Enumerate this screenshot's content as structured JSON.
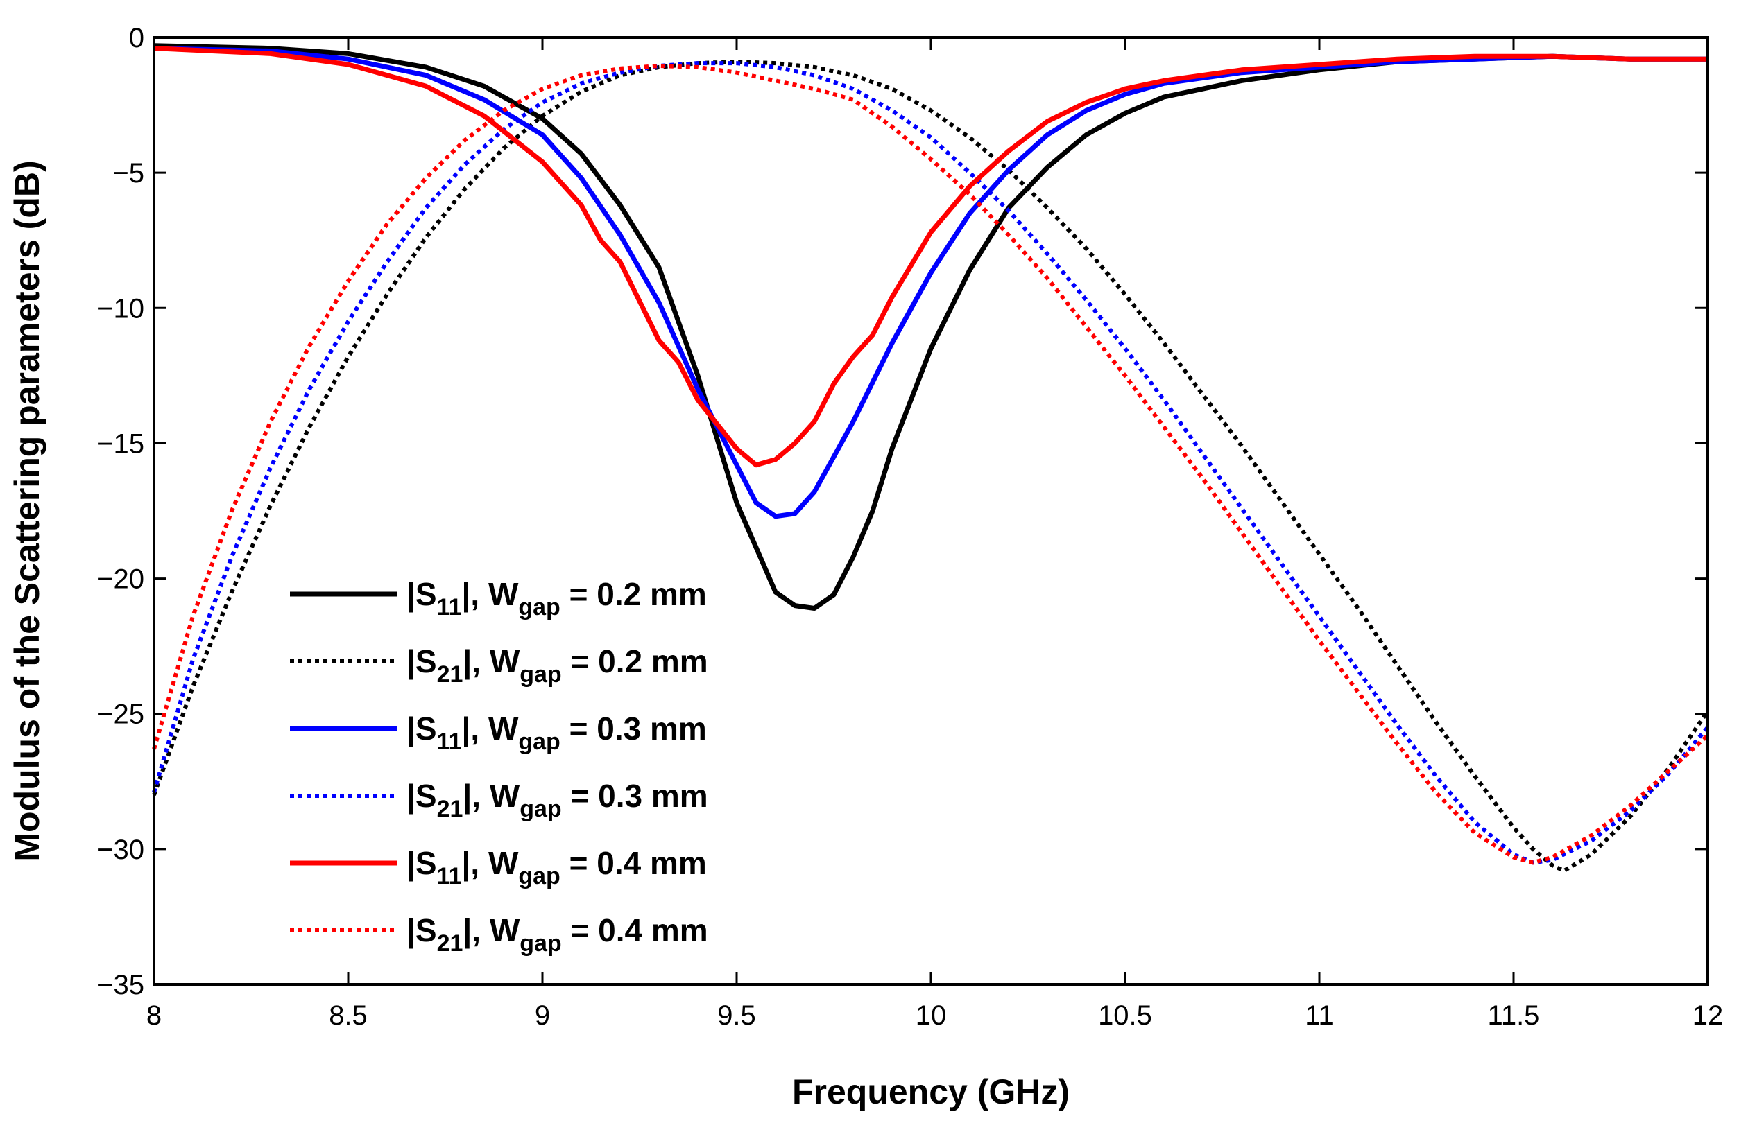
{
  "chart_data": {
    "type": "line",
    "title": "",
    "xlabel": "Frequency (GHz)",
    "ylabel": "Modulus of the Scattering parameters (dB)",
    "xlim": [
      8,
      12
    ],
    "ylim": [
      -35,
      0
    ],
    "xticks": [
      8,
      8.5,
      9,
      9.5,
      10,
      10.5,
      11,
      11.5,
      12
    ],
    "xtick_labels": [
      "8",
      "8.5",
      "9",
      "9.5",
      "10",
      "10.5",
      "11",
      "11.5",
      "12"
    ],
    "yticks": [
      0,
      -5,
      -10,
      -15,
      -20,
      -25,
      -30,
      -35
    ],
    "ytick_labels": [
      "0",
      "−5",
      "−10",
      "−15",
      "−20",
      "−25",
      "−30",
      "−35"
    ],
    "grid": false,
    "legend_position": "bottom-left",
    "series": [
      {
        "name": "|S11|, Wgap = 0.2 mm",
        "label_pre": "|S",
        "label_sub1": "11",
        "label_mid": "|, W",
        "label_sub2": "gap",
        "label_post": " = 0.2 mm",
        "color": "#000000",
        "style": "solid",
        "x": [
          8,
          8.3,
          8.5,
          8.7,
          8.85,
          9,
          9.1,
          9.2,
          9.3,
          9.4,
          9.5,
          9.6,
          9.65,
          9.7,
          9.75,
          9.8,
          9.85,
          9.9,
          10,
          10.1,
          10.2,
          10.3,
          10.4,
          10.5,
          10.6,
          10.8,
          11,
          11.2,
          11.4,
          11.6,
          11.8,
          12
        ],
        "y": [
          -0.3,
          -0.4,
          -0.6,
          -1.1,
          -1.8,
          -3.0,
          -4.3,
          -6.2,
          -8.5,
          -12.5,
          -17.2,
          -20.5,
          -21.0,
          -21.1,
          -20.6,
          -19.2,
          -17.5,
          -15.2,
          -11.5,
          -8.6,
          -6.3,
          -4.8,
          -3.6,
          -2.8,
          -2.2,
          -1.6,
          -1.2,
          -0.9,
          -0.8,
          -0.7,
          -0.8,
          -0.8
        ]
      },
      {
        "name": "|S21|, Wgap = 0.2 mm",
        "label_pre": "|S",
        "label_sub1": "21",
        "label_mid": "|, W",
        "label_sub2": "gap",
        "label_post": " = 0.2 mm",
        "color": "#000000",
        "style": "dotted",
        "x": [
          8,
          8.1,
          8.2,
          8.3,
          8.4,
          8.5,
          8.6,
          8.7,
          8.8,
          8.9,
          9,
          9.1,
          9.2,
          9.3,
          9.4,
          9.5,
          9.6,
          9.7,
          9.8,
          9.9,
          10,
          10.1,
          10.2,
          10.3,
          10.4,
          10.5,
          10.6,
          10.7,
          10.8,
          10.9,
          11,
          11.1,
          11.2,
          11.3,
          11.4,
          11.5,
          11.55,
          11.6,
          11.63,
          11.7,
          11.8,
          11.9,
          12
        ],
        "y": [
          -28.0,
          -24.0,
          -20.5,
          -17.3,
          -14.4,
          -11.8,
          -9.5,
          -7.4,
          -5.6,
          -4.1,
          -2.9,
          -2.0,
          -1.4,
          -1.1,
          -0.95,
          -0.9,
          -0.95,
          -1.1,
          -1.4,
          -1.9,
          -2.7,
          -3.7,
          -4.9,
          -6.3,
          -7.8,
          -9.5,
          -11.3,
          -13.2,
          -15.1,
          -17.1,
          -19.1,
          -21.1,
          -23.2,
          -25.3,
          -27.3,
          -29.2,
          -30.0,
          -30.6,
          -30.8,
          -30.2,
          -28.8,
          -27.0,
          -24.9
        ]
      },
      {
        "name": "|S11|, Wgap = 0.3 mm",
        "label_pre": "|S",
        "label_sub1": "11",
        "label_mid": "|, W",
        "label_sub2": "gap",
        "label_post": " = 0.3 mm",
        "color": "#0000ff",
        "style": "solid",
        "x": [
          8,
          8.3,
          8.5,
          8.7,
          8.85,
          9,
          9.1,
          9.2,
          9.3,
          9.4,
          9.5,
          9.55,
          9.6,
          9.65,
          9.7,
          9.8,
          9.9,
          10,
          10.1,
          10.2,
          10.3,
          10.4,
          10.5,
          10.6,
          10.8,
          11,
          11.2,
          11.4,
          11.6,
          11.8,
          12
        ],
        "y": [
          -0.4,
          -0.5,
          -0.8,
          -1.4,
          -2.3,
          -3.6,
          -5.2,
          -7.3,
          -9.8,
          -13.0,
          -15.8,
          -17.2,
          -17.7,
          -17.6,
          -16.8,
          -14.2,
          -11.3,
          -8.7,
          -6.5,
          -4.9,
          -3.6,
          -2.7,
          -2.1,
          -1.7,
          -1.3,
          -1.1,
          -0.9,
          -0.8,
          -0.7,
          -0.8,
          -0.8
        ]
      },
      {
        "name": "|S21|, Wgap = 0.3 mm",
        "label_pre": "|S",
        "label_sub1": "21",
        "label_mid": "|, W",
        "label_sub2": "gap",
        "label_post": " = 0.3 mm",
        "color": "#0000ff",
        "style": "dotted",
        "x": [
          8,
          8.1,
          8.2,
          8.3,
          8.4,
          8.5,
          8.6,
          8.7,
          8.8,
          8.9,
          9,
          9.1,
          9.2,
          9.3,
          9.4,
          9.5,
          9.6,
          9.7,
          9.8,
          9.9,
          10,
          10.1,
          10.2,
          10.3,
          10.4,
          10.5,
          10.6,
          10.7,
          10.8,
          10.9,
          11,
          11.1,
          11.2,
          11.3,
          11.4,
          11.5,
          11.55,
          11.6,
          11.7,
          11.8,
          11.9,
          12
        ],
        "y": [
          -27.9,
          -23.0,
          -19.2,
          -15.9,
          -13.0,
          -10.5,
          -8.3,
          -6.3,
          -4.7,
          -3.4,
          -2.4,
          -1.7,
          -1.3,
          -1.05,
          -0.95,
          -0.95,
          -1.1,
          -1.4,
          -1.9,
          -2.7,
          -3.7,
          -5.0,
          -6.4,
          -8.0,
          -9.7,
          -11.5,
          -13.4,
          -15.4,
          -17.4,
          -19.4,
          -21.4,
          -23.4,
          -25.4,
          -27.3,
          -29.0,
          -30.2,
          -30.5,
          -30.4,
          -29.7,
          -28.6,
          -27.2,
          -25.5
        ]
      },
      {
        "name": "|S11|, Wgap = 0.4 mm",
        "label_pre": "|S",
        "label_sub1": "11",
        "label_mid": "|, W",
        "label_sub2": "gap",
        "label_post": " = 0.4 mm",
        "color": "#ff0000",
        "style": "solid",
        "x": [
          8,
          8.3,
          8.5,
          8.7,
          8.85,
          9,
          9.1,
          9.15,
          9.2,
          9.3,
          9.35,
          9.4,
          9.5,
          9.55,
          9.6,
          9.65,
          9.7,
          9.75,
          9.8,
          9.85,
          9.9,
          10,
          10.1,
          10.2,
          10.3,
          10.4,
          10.5,
          10.6,
          10.8,
          11,
          11.2,
          11.4,
          11.6,
          11.8,
          12
        ],
        "y": [
          -0.4,
          -0.6,
          -1.0,
          -1.8,
          -2.9,
          -4.6,
          -6.2,
          -7.5,
          -8.3,
          -11.2,
          -12.0,
          -13.4,
          -15.2,
          -15.8,
          -15.6,
          -15.0,
          -14.2,
          -12.8,
          -11.8,
          -11.0,
          -9.6,
          -7.2,
          -5.5,
          -4.2,
          -3.1,
          -2.4,
          -1.9,
          -1.6,
          -1.2,
          -1.0,
          -0.8,
          -0.7,
          -0.7,
          -0.8,
          -0.8
        ]
      },
      {
        "name": "|S21|, Wgap = 0.4 mm",
        "label_pre": "|S",
        "label_sub1": "21",
        "label_mid": "|, W",
        "label_sub2": "gap",
        "label_post": " = 0.4 mm",
        "color": "#ff0000",
        "style": "dotted",
        "x": [
          8,
          8.1,
          8.2,
          8.3,
          8.4,
          8.5,
          8.6,
          8.7,
          8.8,
          8.9,
          9,
          9.1,
          9.2,
          9.3,
          9.4,
          9.5,
          9.6,
          9.7,
          9.8,
          9.9,
          10,
          10.1,
          10.2,
          10.3,
          10.4,
          10.5,
          10.6,
          10.7,
          10.8,
          10.9,
          11,
          11.1,
          11.2,
          11.3,
          11.4,
          11.5,
          11.55,
          11.6,
          11.7,
          11.8,
          11.9,
          12
        ],
        "y": [
          -26.3,
          -21.4,
          -17.5,
          -14.2,
          -11.4,
          -9.0,
          -6.9,
          -5.2,
          -3.8,
          -2.7,
          -1.9,
          -1.4,
          -1.15,
          -1.05,
          -1.1,
          -1.3,
          -1.6,
          -1.9,
          -2.3,
          -3.3,
          -4.5,
          -5.8,
          -7.3,
          -8.9,
          -10.7,
          -12.5,
          -14.4,
          -16.3,
          -18.3,
          -20.3,
          -22.3,
          -24.2,
          -26.1,
          -27.9,
          -29.4,
          -30.3,
          -30.5,
          -30.3,
          -29.5,
          -28.4,
          -27.1,
          -25.8
        ]
      }
    ]
  }
}
